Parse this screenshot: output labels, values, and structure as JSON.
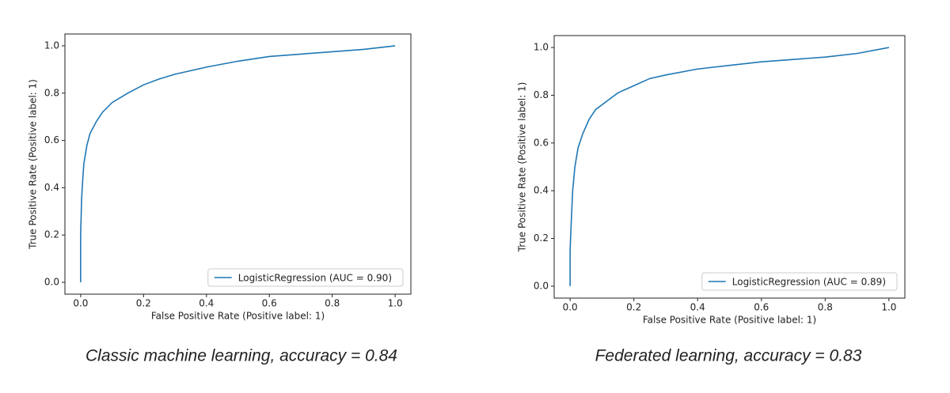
{
  "chart_data": [
    {
      "type": "line",
      "x_label": "False Positive Rate (Positive label: 1)",
      "y_label": "True Positive Rate (Positive label: 1)",
      "caption": "Classic machine learning, accuracy = 0.84",
      "xlim": [
        -0.05,
        1.05
      ],
      "ylim": [
        -0.05,
        1.05
      ],
      "xticks": [
        {
          "value": 0,
          "label": "0.0"
        },
        0.2,
        0.4,
        0.6,
        0.8,
        {
          "value": 1,
          "label": "1.0"
        }
      ],
      "yticks": [
        {
          "value": 0,
          "label": "0.0"
        },
        0.2,
        0.4,
        0.6,
        0.8,
        {
          "value": 1,
          "label": "1.0"
        }
      ],
      "legend": "lower right",
      "series": [
        {
          "name": "LogisticRegression (AUC = 0.90)",
          "color": "#1f77b4",
          "x": [
            0,
            0,
            0.003,
            0.005,
            0.01,
            0.02,
            0.03,
            0.05,
            0.07,
            0.1,
            0.15,
            0.2,
            0.25,
            0.3,
            0.4,
            0.5,
            0.6,
            0.7,
            0.8,
            0.9,
            1.0
          ],
          "values": [
            0,
            0.2,
            0.35,
            0.4,
            0.5,
            0.58,
            0.63,
            0.68,
            0.72,
            0.76,
            0.8,
            0.835,
            0.86,
            0.88,
            0.91,
            0.935,
            0.955,
            0.965,
            0.975,
            0.985,
            1.0
          ]
        }
      ]
    },
    {
      "type": "line",
      "x_label": "False Positive Rate (Positive label: 1)",
      "y_label": "True Positive Rate (Positive label: 1)",
      "caption": "Federated learning, accuracy = 0.83",
      "xlim": [
        -0.05,
        1.05
      ],
      "ylim": [
        -0.05,
        1.05
      ],
      "xticks": [
        {
          "value": 0,
          "label": "0.0"
        },
        0.2,
        0.4,
        0.6,
        0.8,
        {
          "value": 1,
          "label": "1.0"
        }
      ],
      "yticks": [
        {
          "value": 0,
          "label": "0.0"
        },
        0.2,
        0.4,
        0.6,
        0.8,
        {
          "value": 1,
          "label": "1.0"
        }
      ],
      "legend": "lower right",
      "series": [
        {
          "name": "LogisticRegression (AUC = 0.89)",
          "color": "#1f77b4",
          "x": [
            0,
            0,
            0.003,
            0.008,
            0.015,
            0.025,
            0.04,
            0.06,
            0.08,
            0.1,
            0.15,
            0.2,
            0.25,
            0.3,
            0.4,
            0.5,
            0.6,
            0.7,
            0.8,
            0.9,
            1.0
          ],
          "values": [
            0,
            0.15,
            0.25,
            0.4,
            0.5,
            0.58,
            0.64,
            0.7,
            0.74,
            0.76,
            0.81,
            0.84,
            0.87,
            0.885,
            0.91,
            0.925,
            0.94,
            0.95,
            0.96,
            0.975,
            1.0
          ]
        }
      ]
    }
  ]
}
